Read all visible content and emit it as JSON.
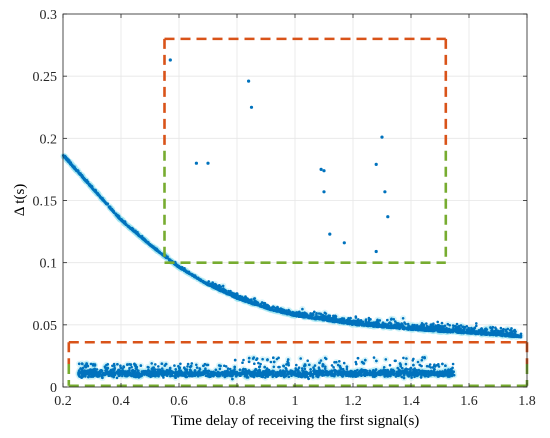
{
  "chart_data": {
    "type": "scatter",
    "xlabel": "Time delay of receiving the first signal(s)",
    "ylabel": "Δ t(s)",
    "xlim": [
      0.2,
      1.8
    ],
    "ylim": [
      0,
      0.3
    ],
    "xticks": [
      0.2,
      0.4,
      0.6,
      0.8,
      1.0,
      1.2,
      1.4,
      1.6,
      1.8
    ],
    "xtick_labels": [
      "0.2",
      "0.4",
      "0.6",
      "0.8",
      "1",
      "1.2",
      "1.4",
      "1.6",
      "1.8"
    ],
    "yticks": [
      0,
      0.05,
      0.1,
      0.15,
      0.2,
      0.25,
      0.3
    ],
    "ytick_labels": [
      "0",
      "0.05",
      "0.1",
      "0.15",
      "0.2",
      "0.25",
      "0.3"
    ],
    "grid": true,
    "marker_color": "#0072BD",
    "halo_color": "#9EE6F0",
    "main_curve": {
      "description_points": [
        [
          0.2,
          0.186
        ],
        [
          0.3,
          0.16
        ],
        [
          0.4,
          0.134
        ],
        [
          0.5,
          0.114
        ],
        [
          0.6,
          0.096
        ],
        [
          0.7,
          0.082
        ],
        [
          0.8,
          0.071
        ],
        [
          0.9,
          0.063
        ],
        [
          1.0,
          0.057
        ],
        [
          1.2,
          0.05
        ],
        [
          1.4,
          0.046
        ],
        [
          1.6,
          0.043
        ],
        [
          1.78,
          0.04
        ]
      ]
    },
    "lower_band": {
      "x_range": [
        0.25,
        1.55
      ],
      "y_range": [
        0.005,
        0.02
      ]
    },
    "outliers": [
      [
        0.57,
        0.263
      ],
      [
        0.84,
        0.246
      ],
      [
        0.85,
        0.225
      ],
      [
        0.66,
        0.18
      ],
      [
        0.7,
        0.18
      ],
      [
        1.09,
        0.175
      ],
      [
        1.1,
        0.174
      ],
      [
        1.1,
        0.157
      ],
      [
        1.28,
        0.179
      ],
      [
        1.3,
        0.201
      ],
      [
        1.31,
        0.157
      ],
      [
        1.32,
        0.137
      ],
      [
        1.12,
        0.123
      ],
      [
        1.17,
        0.116
      ],
      [
        1.28,
        0.109
      ]
    ],
    "annotations": [
      {
        "shape": "dashed-rectangle",
        "color": "#D95319",
        "second_color": "#77AC30",
        "x_range": [
          0.55,
          1.52
        ],
        "y_range": [
          0.1,
          0.28
        ]
      },
      {
        "shape": "dashed-rectangle",
        "color": "#D95319",
        "second_color": "#77AC30",
        "x_range": [
          0.22,
          1.8
        ],
        "y_range": [
          0.001,
          0.036
        ]
      }
    ]
  }
}
